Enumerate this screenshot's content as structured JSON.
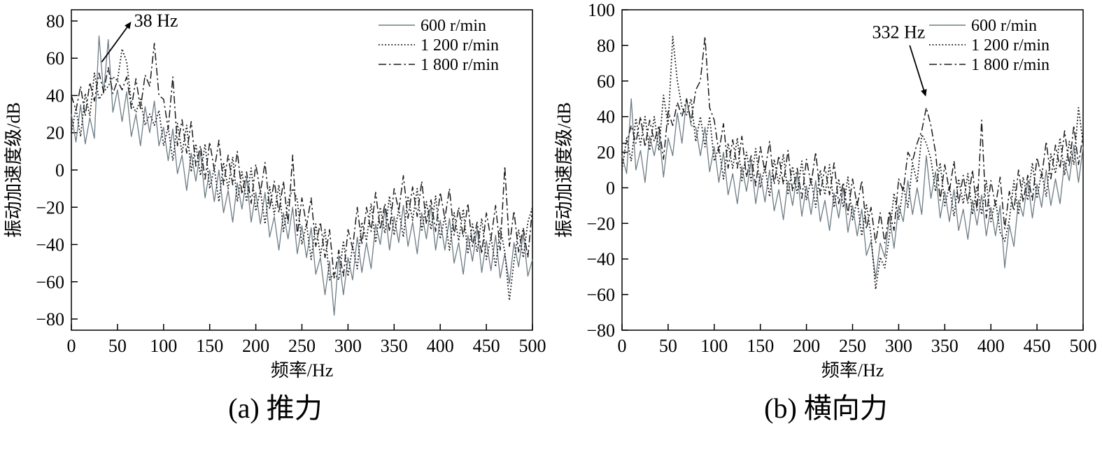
{
  "chart_data": [
    {
      "type": "line",
      "caption": "(a) 推力",
      "xlabel": "频率/Hz",
      "ylabel": "振动加速度级/dB",
      "xlim": [
        0,
        500
      ],
      "ylim": [
        -80,
        80
      ],
      "ydomain": [
        -86,
        86
      ],
      "xticks": [
        0,
        50,
        100,
        150,
        200,
        250,
        300,
        350,
        400,
        450,
        500
      ],
      "yticks": [
        -80,
        -60,
        -40,
        -20,
        0,
        20,
        40,
        60,
        80
      ],
      "x_start": 0,
      "x_step": 5,
      "legend_position": "top-right",
      "grid": false,
      "annotation": {
        "text": "38 Hz",
        "text_at": [
          68,
          77
        ],
        "text_anchor": "start",
        "arrow_from": [
          33,
          58
        ],
        "arrow_to": [
          64,
          79
        ]
      },
      "series": [
        {
          "name": "600 r/min",
          "style": "solid",
          "color": "#6d7c84",
          "width": 1.3,
          "values": [
            30,
            15,
            35,
            14,
            28,
            17,
            72,
            41,
            70,
            31,
            43,
            26,
            42,
            18,
            30,
            13,
            34,
            20,
            37,
            13,
            23,
            5,
            22,
            -2,
            8,
            -11,
            9,
            -6,
            10,
            -15,
            0,
            -17,
            0,
            -23,
            -11,
            -28,
            -7,
            -21,
            -4,
            -28,
            -12,
            -29,
            -12,
            -36,
            -25,
            -43,
            -23,
            -37,
            -20,
            -45,
            -30,
            -47,
            -31,
            -56,
            -47,
            -67,
            -49,
            -78,
            -46,
            -67,
            -47,
            -59,
            -36,
            -55,
            -39,
            -53,
            -29,
            -40,
            -21,
            -43,
            -25,
            -39,
            -19,
            -41,
            -28,
            -45,
            -23,
            -37,
            -19,
            -43,
            -27,
            -43,
            -26,
            -50,
            -39,
            -56,
            -35,
            -49,
            -31,
            -55,
            -38,
            -54,
            -35,
            -58,
            -45,
            -61,
            -39,
            -52,
            -34,
            -57,
            -48
          ]
        },
        {
          "name": "1 200 r/min",
          "style": "dotted",
          "color": "#1a1a1a",
          "width": 1.8,
          "values": [
            20,
            33,
            18,
            41,
            29,
            52,
            38,
            42,
            45,
            50,
            48,
            65,
            58,
            36,
            31,
            38,
            24,
            30,
            24,
            32,
            13,
            23,
            5,
            25,
            9,
            24,
            -1,
            14,
            -3,
            14,
            -10,
            1,
            -17,
            4,
            -10,
            7,
            -17,
            -1,
            -17,
            1,
            -22,
            -11,
            -29,
            -9,
            -24,
            -8,
            -33,
            -17,
            -10,
            -16,
            -40,
            -29,
            -48,
            -29,
            -46,
            -32,
            -59,
            -55,
            -59,
            -38,
            -57,
            -41,
            -53,
            -28,
            -38,
            -18,
            -39,
            -20,
            -34,
            -14,
            -35,
            -21,
            -36,
            -14,
            -27,
            -10,
            -33,
            -17,
            -32,
            -14,
            -37,
            -25,
            -43,
            -23,
            -38,
            -21,
            -45,
            -29,
            -44,
            -26,
            -48,
            -36,
            -52,
            -31,
            -44,
            -70,
            -49,
            -32,
            -47,
            -28,
            -20
          ]
        },
        {
          "name": "1 800 r/min",
          "style": "dashdot",
          "color": "#1a1a1a",
          "width": 1.5,
          "values": [
            40,
            32,
            45,
            29,
            47,
            37,
            52,
            42,
            55,
            41,
            48,
            43,
            50,
            33,
            49,
            33,
            51,
            45,
            68,
            40,
            38,
            22,
            50,
            13,
            27,
            9,
            26,
            2,
            13,
            -5,
            15,
            0,
            16,
            -8,
            8,
            -8,
            10,
            -13,
            -1,
            -18,
            3,
            -12,
            4,
            -21,
            -6,
            -23,
            -6,
            -29,
            8,
            -35,
            -15,
            -30,
            -15,
            -41,
            -28,
            -47,
            -32,
            -58,
            -43,
            -57,
            -32,
            -42,
            -20,
            -40,
            -20,
            -33,
            -12,
            -32,
            -18,
            -33,
            -10,
            -22,
            -3,
            -26,
            -9,
            -25,
            -6,
            -29,
            -16,
            -33,
            -12,
            -26,
            -10,
            -35,
            -20,
            -36,
            -18,
            -41,
            -28,
            -45,
            -23,
            -37,
            -19,
            -43,
            2,
            -41,
            -22,
            -44,
            -31,
            -47,
            -20
          ]
        }
      ]
    },
    {
      "type": "line",
      "caption": "(b) 横向力",
      "xlabel": "频率/Hz",
      "ylabel": "振动加速度级/dB",
      "xlim": [
        0,
        500
      ],
      "ylim": [
        -80,
        100
      ],
      "ydomain": [
        -80,
        100
      ],
      "xticks": [
        0,
        50,
        100,
        150,
        200,
        250,
        300,
        350,
        400,
        450,
        500
      ],
      "yticks": [
        -80,
        -60,
        -40,
        -20,
        0,
        20,
        40,
        60,
        80,
        100
      ],
      "x_start": 0,
      "x_step": 5,
      "legend_position": "top-right",
      "grid": false,
      "annotation": {
        "text": "332 Hz",
        "text_at": [
          300,
          84
        ],
        "text_anchor": "middle",
        "arrow_from": [
          312,
          80
        ],
        "arrow_to": [
          329,
          52
        ]
      },
      "series": [
        {
          "name": "600 r/min",
          "style": "solid",
          "color": "#6d7c84",
          "width": 1.3,
          "values": [
            18,
            8,
            50,
            10,
            21,
            3,
            29,
            18,
            32,
            6,
            28,
            18,
            42,
            25,
            50,
            35,
            34,
            18,
            34,
            9,
            23,
            3,
            20,
            -4,
            8,
            -9,
            12,
            -2,
            15,
            -9,
            8,
            -8,
            10,
            -13,
            -1,
            -18,
            4,
            -10,
            8,
            -16,
            1,
            -15,
            4,
            -19,
            -7,
            -24,
            -3,
            -17,
            0,
            -25,
            -10,
            -27,
            -12,
            -38,
            -30,
            -51,
            -31,
            -39,
            -16,
            -34,
            -10,
            -19,
            4,
            -15,
            0,
            -15,
            18,
            -6,
            9,
            -17,
            -2,
            -19,
            -1,
            -24,
            -12,
            -29,
            -7,
            -21,
            -4,
            -27,
            -11,
            -27,
            -10,
            -45,
            -21,
            -33,
            -7,
            -16,
            4,
            -17,
            2,
            -11,
            10,
            -10,
            5,
            -9,
            15,
            4,
            24,
            3,
            23
          ]
        },
        {
          "name": "1 200 r/min",
          "style": "dotted",
          "color": "#1a1a1a",
          "width": 1.8,
          "values": [
            10,
            28,
            15,
            39,
            24,
            40,
            21,
            40,
            21,
            52,
            35,
            85,
            60,
            45,
            41,
            50,
            26,
            40,
            23,
            40,
            15,
            23,
            5,
            25,
            11,
            28,
            4,
            20,
            4,
            22,
            0,
            12,
            -5,
            16,
            2,
            19,
            -4,
            12,
            -3,
            15,
            -7,
            5,
            -11,
            10,
            -4,
            13,
            -11,
            5,
            -11,
            6,
            -18,
            -7,
            -27,
            -9,
            -27,
            -57,
            -39,
            -45,
            -27,
            -3,
            -18,
            1,
            -11,
            14,
            3,
            30,
            25,
            16,
            -2,
            14,
            -10,
            1,
            -16,
            5,
            -9,
            8,
            -15,
            1,
            -15,
            4,
            -19,
            -7,
            -25,
            -30,
            -18,
            4,
            -15,
            6,
            -7,
            14,
            -6,
            9,
            -5,
            19,
            8,
            28,
            7,
            26,
            13,
            45,
            25
          ]
        },
        {
          "name": "1 800 r/min",
          "style": "dashdot",
          "color": "#1a1a1a",
          "width": 1.5,
          "values": [
            25,
            25,
            35,
            25,
            40,
            23,
            38,
            26,
            35,
            16,
            43,
            35,
            48,
            40,
            50,
            37,
            55,
            60,
            85,
            45,
            38,
            20,
            36,
            11,
            27,
            11,
            29,
            6,
            18,
            1,
            23,
            9,
            26,
            2,
            18,
            2,
            21,
            -2,
            11,
            -6,
            16,
            2,
            20,
            -4,
            12,
            -4,
            14,
            -9,
            3,
            -15,
            5,
            -10,
            4,
            -23,
            -11,
            -31,
            -14,
            -31,
            -13,
            -24,
            5,
            -2,
            20,
            15,
            25,
            32,
            45,
            35,
            20,
            -7,
            13,
            -2,
            15,
            -9,
            7,
            -9,
            10,
            -13,
            38,
            -17,
            4,
            -10,
            6,
            -23,
            -2,
            -13,
            10,
            -8,
            7,
            -7,
            17,
            6,
            26,
            5,
            24,
            11,
            32,
            12,
            35,
            13,
            30
          ]
        }
      ]
    }
  ]
}
